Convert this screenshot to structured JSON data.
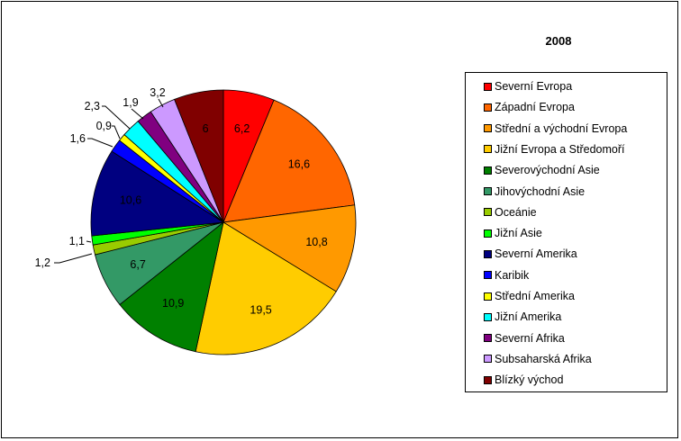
{
  "chart_data": {
    "type": "pie",
    "title": "2008",
    "legend_position": "right",
    "slices": [
      {
        "label": "Severní Evropa",
        "value": 6.2,
        "display": "6,2",
        "color": "#ff0000"
      },
      {
        "label": "Západní Evropa",
        "value": 16.6,
        "display": "16,6",
        "color": "#ff6600"
      },
      {
        "label": "Střední a východní Evropa",
        "value": 10.8,
        "display": "10,8",
        "color": "#ff9900"
      },
      {
        "label": "Jižní Evropa a Středomoří",
        "value": 19.5,
        "display": "19,5",
        "color": "#ffcc00"
      },
      {
        "label": "Severovýchodní Asie",
        "value": 10.9,
        "display": "10,9",
        "color": "#008000"
      },
      {
        "label": "Jihovýchodní Asie",
        "value": 6.7,
        "display": "6,7",
        "color": "#339966"
      },
      {
        "label": "Oceánie",
        "value": 1.2,
        "display": "1,2",
        "color": "#99cc00"
      },
      {
        "label": "Jižní Asie",
        "value": 1.1,
        "display": "1,1",
        "color": "#00ff00"
      },
      {
        "label": "Severní Amerika",
        "value": 10.6,
        "display": "10,6",
        "color": "#000080"
      },
      {
        "label": "Karibik",
        "value": 1.6,
        "display": "1,6",
        "color": "#0000ff"
      },
      {
        "label": "Střední Amerika",
        "value": 0.9,
        "display": "0,9",
        "color": "#ffff00"
      },
      {
        "label": "Jižní Amerika",
        "value": 2.3,
        "display": "2,3",
        "color": "#00ffff"
      },
      {
        "label": "Severní Afrika",
        "value": 1.9,
        "display": "1,9",
        "color": "#800080"
      },
      {
        "label": "Subsaharská Afrika",
        "value": 3.2,
        "display": "3,2",
        "color": "#cc99ff"
      },
      {
        "label": "Blízký východ",
        "value": 6,
        "display": "6",
        "color": "#800000"
      }
    ]
  }
}
